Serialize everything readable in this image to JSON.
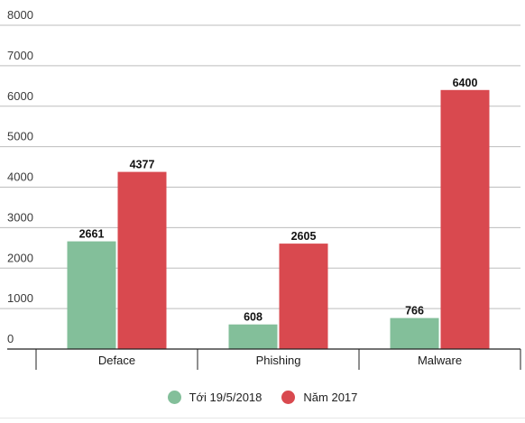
{
  "chart_data": {
    "type": "bar",
    "categories": [
      "Deface",
      "Phishing",
      "Malware"
    ],
    "series": [
      {
        "name": "Tới 19/5/2018",
        "values": [
          2661,
          608,
          766
        ],
        "color": "#83bf9a"
      },
      {
        "name": "Năm 2017",
        "values": [
          4377,
          2605,
          6400
        ],
        "color": "#d9494f"
      }
    ],
    "yticks": [
      0,
      1000,
      2000,
      3000,
      4000,
      5000,
      6000,
      7000,
      8000
    ],
    "ylim": [
      0,
      8000
    ],
    "grid": true,
    "legend_position": "bottom"
  }
}
